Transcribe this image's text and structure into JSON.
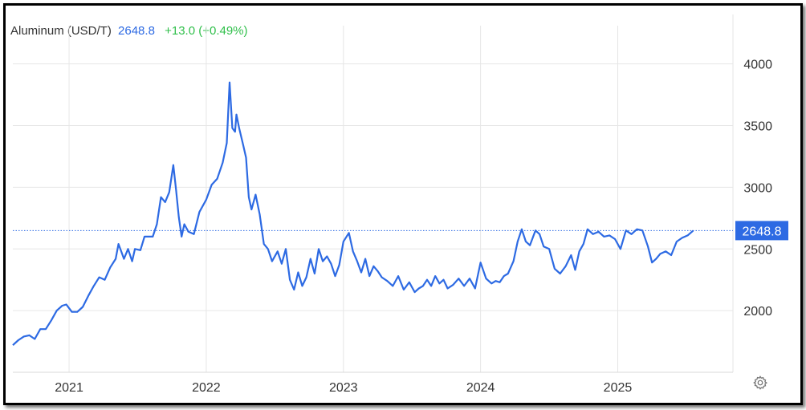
{
  "header": {
    "name": "Aluminum (USD/T)",
    "price": "2648.8",
    "change": "+13.0 (+0.49%)"
  },
  "last_price_label": "2648.8",
  "colors": {
    "line": "#2d6ae3",
    "change_positive": "#2fbf4a",
    "grid": "#e6e6e6"
  },
  "icons": {
    "settings": "gear-icon"
  },
  "chart_data": {
    "type": "line",
    "title": "",
    "xlabel": "",
    "ylabel": "",
    "ylim": [
      1500,
      4050
    ],
    "xlim": [
      2020.59,
      2025.84
    ],
    "yticks": [
      2000,
      2500,
      3000,
      3500,
      4000
    ],
    "xticks": [
      {
        "label": "2021",
        "value": 2021.0
      },
      {
        "label": "2022",
        "value": 2022.0
      },
      {
        "label": "2023",
        "value": 2023.0
      },
      {
        "label": "2024",
        "value": 2024.0
      },
      {
        "label": "2025",
        "value": 2025.0
      }
    ],
    "grid": true,
    "last_value": 2648.8,
    "series": [
      {
        "points": [
          [
            2020.59,
            1720
          ],
          [
            2020.63,
            1760
          ],
          [
            2020.67,
            1790
          ],
          [
            2020.71,
            1800
          ],
          [
            2020.75,
            1770
          ],
          [
            2020.79,
            1850
          ],
          [
            2020.83,
            1850
          ],
          [
            2020.87,
            1920
          ],
          [
            2020.91,
            2000
          ],
          [
            2020.95,
            2040
          ],
          [
            2020.98,
            2050
          ],
          [
            2021.02,
            1990
          ],
          [
            2021.06,
            1990
          ],
          [
            2021.1,
            2030
          ],
          [
            2021.14,
            2120
          ],
          [
            2021.18,
            2200
          ],
          [
            2021.22,
            2270
          ],
          [
            2021.26,
            2250
          ],
          [
            2021.3,
            2350
          ],
          [
            2021.34,
            2420
          ],
          [
            2021.36,
            2540
          ],
          [
            2021.38,
            2480
          ],
          [
            2021.4,
            2420
          ],
          [
            2021.43,
            2500
          ],
          [
            2021.46,
            2400
          ],
          [
            2021.48,
            2500
          ],
          [
            2021.52,
            2490
          ],
          [
            2021.55,
            2600
          ],
          [
            2021.58,
            2600
          ],
          [
            2021.61,
            2600
          ],
          [
            2021.64,
            2700
          ],
          [
            2021.67,
            2920
          ],
          [
            2021.7,
            2880
          ],
          [
            2021.73,
            2960
          ],
          [
            2021.76,
            3180
          ],
          [
            2021.78,
            2980
          ],
          [
            2021.8,
            2760
          ],
          [
            2021.82,
            2600
          ],
          [
            2021.84,
            2700
          ],
          [
            2021.87,
            2640
          ],
          [
            2021.91,
            2620
          ],
          [
            2021.95,
            2800
          ],
          [
            2022.0,
            2900
          ],
          [
            2022.04,
            3020
          ],
          [
            2022.08,
            3070
          ],
          [
            2022.12,
            3200
          ],
          [
            2022.15,
            3360
          ],
          [
            2022.17,
            3850
          ],
          [
            2022.19,
            3480
          ],
          [
            2022.21,
            3450
          ],
          [
            2022.22,
            3590
          ],
          [
            2022.24,
            3480
          ],
          [
            2022.27,
            3340
          ],
          [
            2022.29,
            3240
          ],
          [
            2022.31,
            2920
          ],
          [
            2022.33,
            2820
          ],
          [
            2022.36,
            2940
          ],
          [
            2022.39,
            2780
          ],
          [
            2022.42,
            2540
          ],
          [
            2022.45,
            2500
          ],
          [
            2022.48,
            2400
          ],
          [
            2022.52,
            2480
          ],
          [
            2022.55,
            2380
          ],
          [
            2022.58,
            2500
          ],
          [
            2022.61,
            2250
          ],
          [
            2022.64,
            2170
          ],
          [
            2022.67,
            2310
          ],
          [
            2022.7,
            2200
          ],
          [
            2022.73,
            2270
          ],
          [
            2022.76,
            2420
          ],
          [
            2022.79,
            2300
          ],
          [
            2022.82,
            2500
          ],
          [
            2022.85,
            2400
          ],
          [
            2022.88,
            2440
          ],
          [
            2022.91,
            2380
          ],
          [
            2022.94,
            2280
          ],
          [
            2022.97,
            2370
          ],
          [
            2023.0,
            2560
          ],
          [
            2023.04,
            2630
          ],
          [
            2023.07,
            2480
          ],
          [
            2023.1,
            2400
          ],
          [
            2023.13,
            2310
          ],
          [
            2023.16,
            2420
          ],
          [
            2023.19,
            2280
          ],
          [
            2023.22,
            2360
          ],
          [
            2023.25,
            2320
          ],
          [
            2023.28,
            2270
          ],
          [
            2023.32,
            2240
          ],
          [
            2023.36,
            2200
          ],
          [
            2023.4,
            2280
          ],
          [
            2023.44,
            2170
          ],
          [
            2023.48,
            2230
          ],
          [
            2023.52,
            2150
          ],
          [
            2023.55,
            2180
          ],
          [
            2023.58,
            2200
          ],
          [
            2023.61,
            2250
          ],
          [
            2023.64,
            2200
          ],
          [
            2023.67,
            2280
          ],
          [
            2023.7,
            2220
          ],
          [
            2023.73,
            2250
          ],
          [
            2023.76,
            2180
          ],
          [
            2023.8,
            2210
          ],
          [
            2023.84,
            2260
          ],
          [
            2023.88,
            2200
          ],
          [
            2023.92,
            2260
          ],
          [
            2023.96,
            2180
          ],
          [
            2024.0,
            2390
          ],
          [
            2024.04,
            2260
          ],
          [
            2024.08,
            2220
          ],
          [
            2024.11,
            2240
          ],
          [
            2024.14,
            2230
          ],
          [
            2024.17,
            2280
          ],
          [
            2024.2,
            2300
          ],
          [
            2024.24,
            2400
          ],
          [
            2024.27,
            2560
          ],
          [
            2024.3,
            2660
          ],
          [
            2024.33,
            2560
          ],
          [
            2024.36,
            2530
          ],
          [
            2024.4,
            2650
          ],
          [
            2024.43,
            2620
          ],
          [
            2024.46,
            2520
          ],
          [
            2024.5,
            2500
          ],
          [
            2024.54,
            2340
          ],
          [
            2024.58,
            2300
          ],
          [
            2024.62,
            2360
          ],
          [
            2024.66,
            2450
          ],
          [
            2024.69,
            2330
          ],
          [
            2024.72,
            2480
          ],
          [
            2024.75,
            2540
          ],
          [
            2024.78,
            2660
          ],
          [
            2024.82,
            2620
          ],
          [
            2024.86,
            2640
          ],
          [
            2024.9,
            2600
          ],
          [
            2024.94,
            2610
          ],
          [
            2024.98,
            2580
          ],
          [
            2025.02,
            2500
          ],
          [
            2025.06,
            2650
          ],
          [
            2025.1,
            2620
          ],
          [
            2025.14,
            2660
          ],
          [
            2025.18,
            2650
          ],
          [
            2025.22,
            2520
          ],
          [
            2025.25,
            2390
          ],
          [
            2025.28,
            2420
          ],
          [
            2025.31,
            2460
          ],
          [
            2025.35,
            2480
          ],
          [
            2025.39,
            2450
          ],
          [
            2025.43,
            2560
          ],
          [
            2025.47,
            2590
          ],
          [
            2025.51,
            2610
          ],
          [
            2025.55,
            2648.8
          ]
        ]
      }
    ]
  }
}
